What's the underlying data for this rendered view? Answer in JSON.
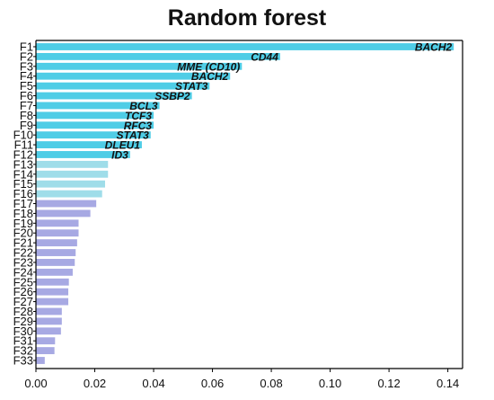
{
  "chart_data": {
    "type": "bar",
    "orientation": "horizontal",
    "title": "Random forest",
    "xlabel": "",
    "ylabel": "",
    "xlim": [
      0,
      0.145
    ],
    "xticks": [
      "0.00",
      "0.02",
      "0.04",
      "0.06",
      "0.08",
      "0.10",
      "0.12",
      "0.14"
    ],
    "grid": false,
    "legend": "none",
    "colors": {
      "bar": "#4fcde6",
      "bar_light": "#9fdde9",
      "bar_faded": "#a7a9e3",
      "axis": "#000000"
    },
    "categories": [
      "F1",
      "F2",
      "F3",
      "F4",
      "F5",
      "F6",
      "F7",
      "F8",
      "F9",
      "F10",
      "F11",
      "F12",
      "F13",
      "F14",
      "F15",
      "F16",
      "F17",
      "F18",
      "F19",
      "F20",
      "F21",
      "F22",
      "F23",
      "F24",
      "F25",
      "F26",
      "F27",
      "F28",
      "F29",
      "F30",
      "F31",
      "F32",
      "F33"
    ],
    "values": [
      0.142,
      0.083,
      0.07,
      0.066,
      0.059,
      0.053,
      0.042,
      0.04,
      0.04,
      0.039,
      0.036,
      0.032,
      0.0245,
      0.0245,
      0.0235,
      0.0225,
      0.0205,
      0.0185,
      0.0145,
      0.0145,
      0.014,
      0.0135,
      0.0132,
      0.0125,
      0.0112,
      0.011,
      0.011,
      0.0088,
      0.0088,
      0.0085,
      0.0065,
      0.0063,
      0.003
    ],
    "annotations": [
      "BACH2",
      "CD44",
      "MME (CD10)",
      "BACH2",
      "STAT3",
      "SSBP2",
      "BCL3",
      "TCF3",
      "RFC3",
      "STAT3",
      "DLEU1",
      "ID3",
      "",
      "",
      "",
      "",
      "",
      "",
      "",
      "",
      "",
      "",
      "",
      "",
      "",
      "",
      "",
      "",
      "",
      "",
      "",
      "",
      ""
    ]
  }
}
